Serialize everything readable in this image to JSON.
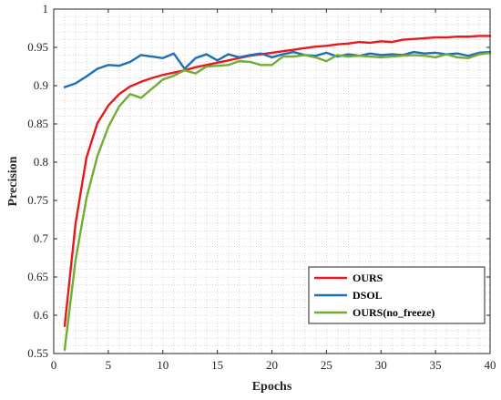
{
  "chart_data": {
    "type": "line",
    "xlabel": "Epochs",
    "ylabel": "Precision",
    "xlim": [
      0,
      40
    ],
    "ylim": [
      0.55,
      1
    ],
    "xticks": [
      0,
      5,
      10,
      15,
      20,
      25,
      30,
      35,
      40
    ],
    "yticks": [
      0.55,
      0.6,
      0.65,
      0.7,
      0.75,
      0.8,
      0.85,
      0.9,
      0.95,
      1
    ],
    "ytick_labels": [
      "0.55",
      "0.6",
      "0.65",
      "0.7",
      "0.75",
      "0.8",
      "0.85",
      "0.9",
      "0.95",
      "1"
    ],
    "grid": "dotted",
    "legend_position": "bottom-right",
    "x": [
      1,
      2,
      3,
      4,
      5,
      6,
      7,
      8,
      9,
      10,
      11,
      12,
      13,
      14,
      15,
      16,
      17,
      18,
      19,
      20,
      21,
      22,
      23,
      24,
      25,
      26,
      27,
      28,
      29,
      30,
      31,
      32,
      33,
      34,
      35,
      36,
      37,
      38,
      39,
      40
    ],
    "series": [
      {
        "name": "OURS",
        "color": "#e8191c",
        "values": [
          0.586,
          0.72,
          0.806,
          0.851,
          0.874,
          0.889,
          0.899,
          0.905,
          0.91,
          0.914,
          0.917,
          0.92,
          0.924,
          0.927,
          0.93,
          0.933,
          0.936,
          0.939,
          0.941,
          0.943,
          0.945,
          0.947,
          0.949,
          0.951,
          0.952,
          0.954,
          0.955,
          0.957,
          0.956,
          0.958,
          0.957,
          0.96,
          0.961,
          0.962,
          0.963,
          0.963,
          0.964,
          0.964,
          0.965,
          0.965
        ]
      },
      {
        "name": "DSOL",
        "color": "#1f6fb4",
        "values": [
          0.898,
          0.903,
          0.912,
          0.922,
          0.927,
          0.926,
          0.931,
          0.94,
          0.938,
          0.936,
          0.942,
          0.922,
          0.936,
          0.941,
          0.933,
          0.941,
          0.937,
          0.94,
          0.942,
          0.937,
          0.941,
          0.944,
          0.94,
          0.939,
          0.943,
          0.938,
          0.941,
          0.939,
          0.942,
          0.94,
          0.941,
          0.94,
          0.944,
          0.942,
          0.943,
          0.941,
          0.942,
          0.939,
          0.943,
          0.944
        ]
      },
      {
        "name": "OURS(no_freeze)",
        "color": "#70ad32",
        "values": [
          0.555,
          0.672,
          0.753,
          0.808,
          0.846,
          0.873,
          0.889,
          0.884,
          0.896,
          0.908,
          0.913,
          0.92,
          0.916,
          0.925,
          0.926,
          0.927,
          0.932,
          0.931,
          0.927,
          0.927,
          0.938,
          0.938,
          0.94,
          0.937,
          0.932,
          0.94,
          0.938,
          0.939,
          0.938,
          0.937,
          0.938,
          0.939,
          0.94,
          0.939,
          0.937,
          0.941,
          0.937,
          0.936,
          0.941,
          0.943
        ]
      }
    ]
  }
}
